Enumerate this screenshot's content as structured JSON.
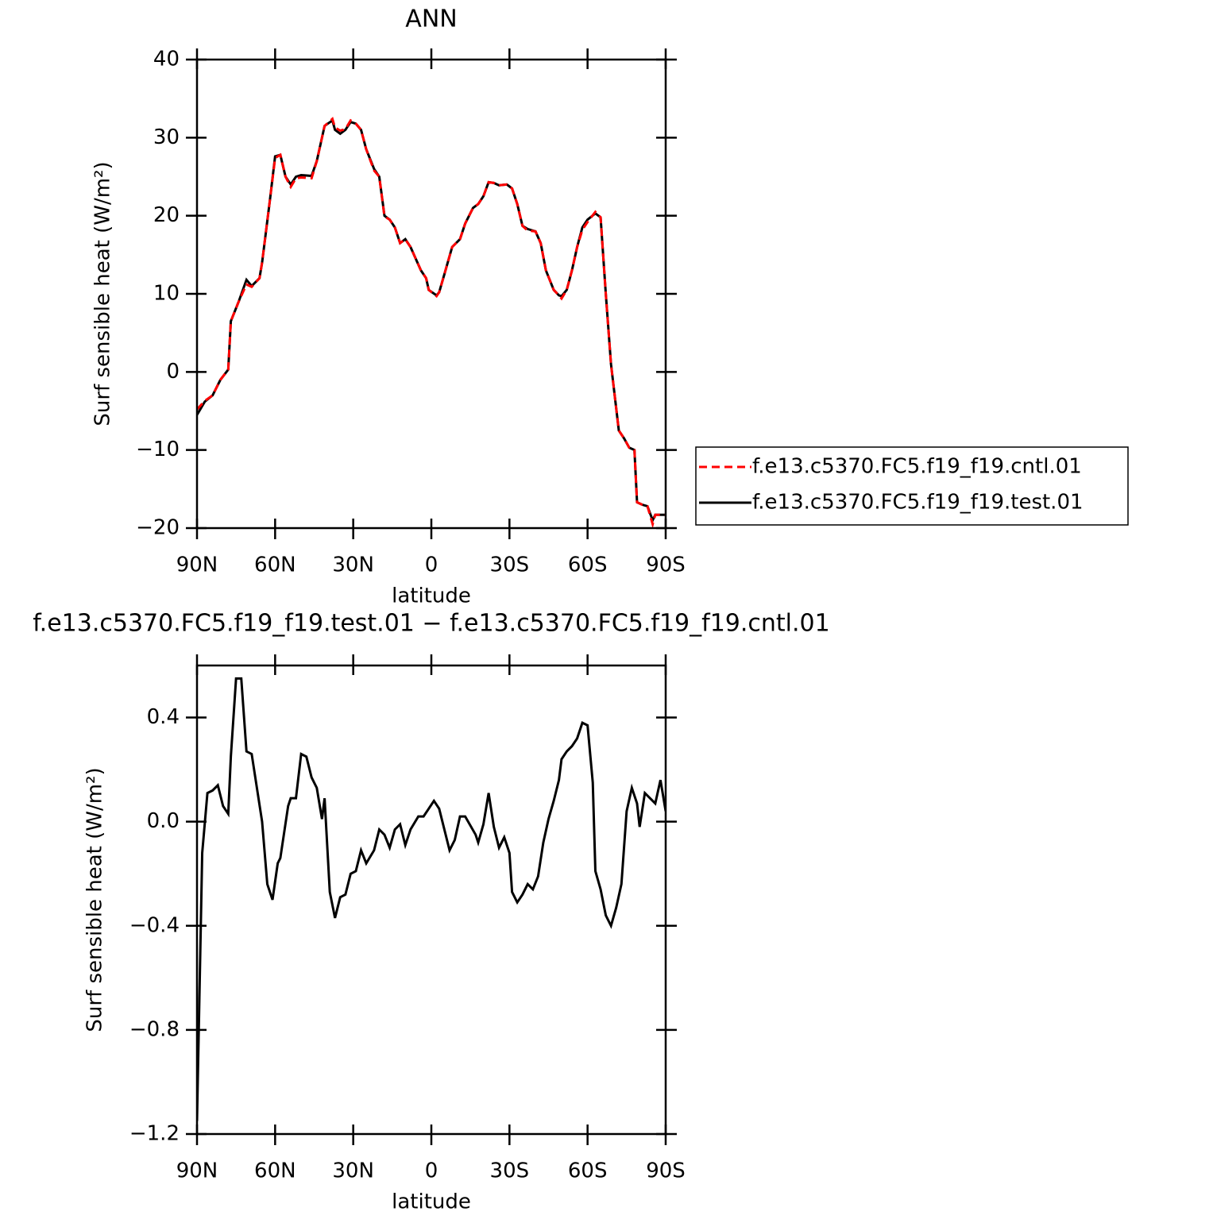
{
  "chart_data": [
    {
      "type": "line",
      "title": "ANN",
      "xlabel": "latitude",
      "ylabel": "Surf sensible heat (W/m²)",
      "x": [
        90,
        87,
        84,
        81,
        78,
        77,
        74,
        71,
        69,
        66,
        65,
        62,
        60,
        58,
        56,
        54,
        52,
        50,
        46,
        44,
        41,
        38,
        37,
        35,
        33,
        31,
        29,
        27,
        25,
        22,
        20,
        18,
        16,
        14,
        12,
        10,
        8,
        4,
        2,
        1,
        -2,
        -3,
        -5,
        -8,
        -11,
        -13,
        -16,
        -18,
        -20,
        -22,
        -24,
        -26,
        -29,
        -31,
        -33,
        -35,
        -37,
        -40,
        -42,
        -44,
        -47,
        -49,
        -50,
        -52,
        -54,
        -56,
        -58,
        -60,
        -63,
        -65,
        -67,
        -69,
        -72,
        -74,
        -76,
        -78,
        -79,
        -81,
        -83,
        -85,
        -86,
        -90
      ],
      "series": [
        {
          "name": "f.e13.c5370.FC5.f19_f19.cntl.01",
          "color": "#ff0000",
          "linestyle": "dashed",
          "values": [
            -4.8,
            -3.7,
            -3,
            -1,
            0.3,
            6.5,
            9,
            11.2,
            10.9,
            12,
            14,
            22,
            27.4,
            27.8,
            25,
            23.7,
            24.8,
            24.9,
            24.8,
            27,
            31.5,
            32.4,
            31.3,
            30.9,
            31.1,
            32.2,
            31.8,
            31,
            28.5,
            25.8,
            25,
            19.9,
            19.5,
            18.5,
            16.5,
            17,
            16,
            13,
            12,
            10.5,
            9.7,
            10.2,
            12.5,
            16,
            17,
            19,
            21,
            21.5,
            22.5,
            24.3,
            24.2,
            23.9,
            24,
            23.5,
            21.5,
            18.7,
            18.1,
            18,
            16.5,
            13,
            10.5,
            9.8,
            9.4,
            10.5,
            13,
            16,
            18.2,
            19.2,
            20.5,
            19.8,
            10,
            1,
            -7.5,
            -8.5,
            -9.7,
            -10,
            -16.7,
            -17,
            -17.2,
            -19.5,
            -18.3,
            -18.3
          ]
        },
        {
          "name": "f.e13.c5370.FC5.f19_f19.test.01",
          "color": "#000000",
          "linestyle": "solid",
          "values": [
            -5.5,
            -3.8,
            -3,
            -1,
            0.3,
            6.5,
            9,
            11.8,
            11,
            12,
            14,
            22,
            27.6,
            27.8,
            25,
            24,
            25,
            25.2,
            25.1,
            27,
            31.5,
            32.2,
            31,
            30.5,
            31,
            32,
            31.8,
            31,
            28.5,
            26,
            25,
            20,
            19.5,
            18.5,
            16.5,
            17,
            16,
            13,
            12,
            10.5,
            9.8,
            10.2,
            12.5,
            16,
            17,
            19,
            21,
            21.5,
            22.5,
            24.3,
            24.2,
            23.9,
            24,
            23.5,
            21.5,
            18.7,
            18.3,
            18,
            16.5,
            13,
            10.5,
            9.8,
            9.7,
            10.5,
            13,
            16,
            18.5,
            19.5,
            20.3,
            19.8,
            10,
            1,
            -7.5,
            -8.5,
            -9.7,
            -10,
            -16.7,
            -17,
            -17.2,
            -19,
            -18.3,
            -18.3
          ]
        }
      ],
      "xlim": [
        90,
        -90
      ],
      "xticks": [
        {
          "value": 90,
          "label": "90N"
        },
        {
          "value": 60,
          "label": "60N"
        },
        {
          "value": 30,
          "label": "30N"
        },
        0,
        {
          "value": -30,
          "label": "30S"
        },
        {
          "value": -60,
          "label": "60S"
        },
        {
          "value": -90,
          "label": "90S"
        }
      ],
      "ylim": [
        -20,
        40
      ],
      "yticks": [
        {
          "value": -20,
          "label": "−20"
        },
        {
          "value": -10,
          "label": "−10"
        },
        0,
        10,
        20,
        30,
        40
      ],
      "legend": "right"
    },
    {
      "type": "line",
      "title": "f.e13.c5370.FC5.f19_f19.test.01 − f.e13.c5370.FC5.f19_f19.cntl.01",
      "xlabel": "latitude",
      "ylabel": "Surf sensible heat (W/m²)",
      "x": [
        90,
        88,
        86,
        84,
        82,
        80,
        78,
        77,
        75,
        73,
        71,
        69,
        65,
        63,
        61,
        59,
        58,
        55,
        54,
        52,
        50,
        48,
        46,
        44,
        42,
        41,
        39,
        37,
        35,
        33,
        31,
        29,
        27,
        25,
        22,
        20,
        18,
        16,
        14,
        12,
        10,
        8,
        5,
        3,
        1,
        -1,
        -3,
        -5,
        -7,
        -9,
        -11,
        -13,
        -17,
        -18,
        -20,
        -22,
        -24,
        -26,
        -28,
        -30,
        -31,
        -33,
        -35,
        -37,
        -39,
        -41,
        -43,
        -45,
        -47,
        -49,
        -50,
        -52,
        -54,
        -56,
        -58,
        -60,
        -62,
        -63,
        -65,
        -67,
        -69,
        -71,
        -73,
        -75,
        -77,
        -79,
        -80,
        -82,
        -84,
        -86,
        -88,
        -90
      ],
      "values": [
        -1.15,
        -0.12,
        0.11,
        0.12,
        0.14,
        0.06,
        0.03,
        0.25,
        0.55,
        0.55,
        0.27,
        0.26,
        0.0,
        -0.24,
        -0.3,
        -0.16,
        -0.14,
        0.06,
        0.09,
        0.09,
        0.26,
        0.25,
        0.17,
        0.13,
        0.01,
        0.09,
        -0.27,
        -0.37,
        -0.29,
        -0.28,
        -0.2,
        -0.19,
        -0.11,
        -0.16,
        -0.11,
        -0.03,
        -0.05,
        -0.1,
        -0.03,
        -0.01,
        -0.09,
        -0.03,
        0.02,
        0.02,
        0.05,
        0.08,
        0.05,
        -0.03,
        -0.11,
        -0.07,
        0.02,
        0.02,
        -0.05,
        -0.08,
        -0.01,
        0.11,
        -0.02,
        -0.1,
        -0.06,
        -0.12,
        -0.27,
        -0.31,
        -0.28,
        -0.24,
        -0.26,
        -0.21,
        -0.08,
        0.01,
        0.08,
        0.16,
        0.24,
        0.27,
        0.29,
        0.32,
        0.38,
        0.37,
        0.15,
        -0.19,
        -0.26,
        -0.36,
        -0.4,
        -0.33,
        -0.24,
        0.04,
        0.13,
        0.07,
        -0.02,
        0.11,
        0.09,
        0.07,
        0.16,
        0.04
      ],
      "color": "#000000",
      "xlim": [
        90,
        -90
      ],
      "xticks": [
        {
          "value": 90,
          "label": "90N"
        },
        {
          "value": 60,
          "label": "60N"
        },
        {
          "value": 30,
          "label": "30N"
        },
        0,
        {
          "value": -30,
          "label": "30S"
        },
        {
          "value": -60,
          "label": "60S"
        },
        {
          "value": -90,
          "label": "90S"
        }
      ],
      "ylim": [
        -1.2,
        0.6
      ],
      "yticks": [
        {
          "value": -1.2,
          "label": "−1.2"
        },
        {
          "value": -0.8,
          "label": "−0.8"
        },
        {
          "value": -0.4,
          "label": "−0.4"
        },
        {
          "value": 0,
          "label": "0.0"
        },
        {
          "value": 0.4,
          "label": "0.4"
        }
      ]
    }
  ]
}
